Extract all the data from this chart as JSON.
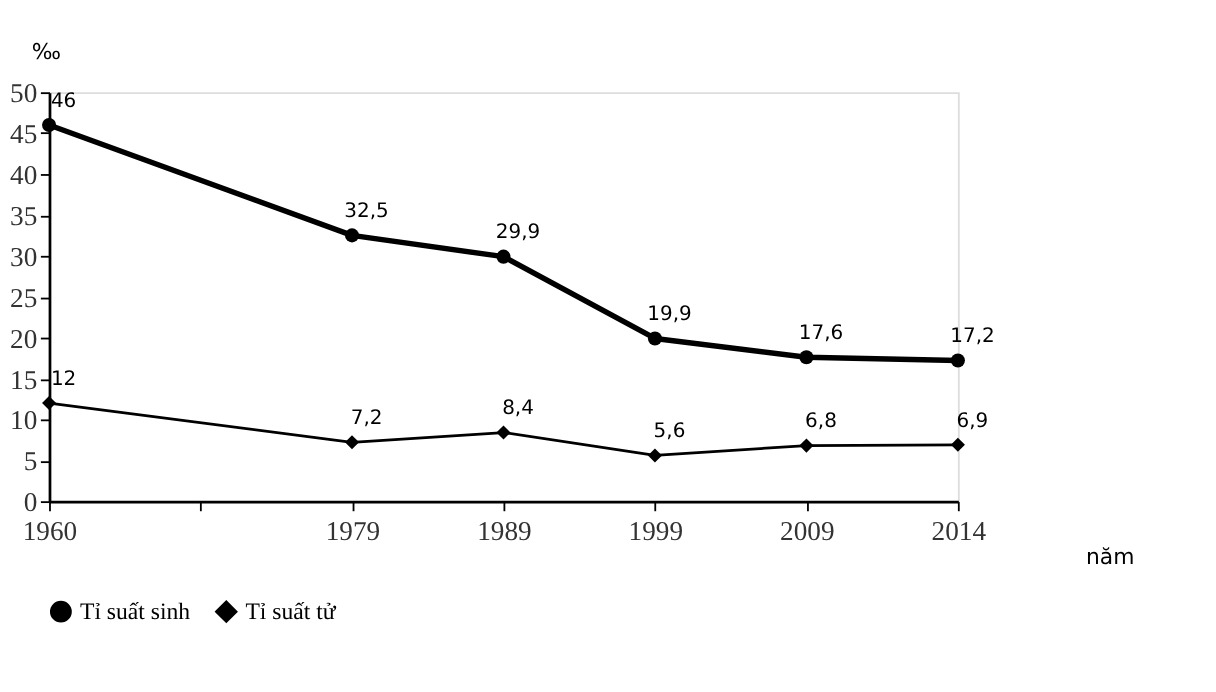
{
  "chart_data": {
    "type": "line",
    "categories": [
      "1960",
      null,
      "1979",
      "1989",
      "1999",
      "2009",
      "2014"
    ],
    "xlabel": "năm",
    "ylabel": "‰",
    "ylim": [
      0,
      50
    ],
    "yticks": [
      0,
      5,
      10,
      15,
      20,
      25,
      30,
      35,
      40,
      45,
      50
    ],
    "grid": false,
    "legend": "bottom",
    "series": [
      {
        "name": "Tỉ suất sinh",
        "color": "#000000",
        "marker": "circle",
        "values": [
          46,
          null,
          32.5,
          29.9,
          19.9,
          17.6,
          17.2
        ],
        "value_labels": [
          "46",
          null,
          "32,5",
          "29,9",
          "19,9",
          "17,6",
          "17,2"
        ]
      },
      {
        "name": "Tỉ suất tử",
        "color": "#000000",
        "marker": "diamond",
        "values": [
          12,
          null,
          7.2,
          8.4,
          5.6,
          6.8,
          6.9
        ],
        "value_labels": [
          "12",
          null,
          "7,2",
          "8,4",
          "5,6",
          "6,8",
          "6,9"
        ]
      }
    ]
  }
}
